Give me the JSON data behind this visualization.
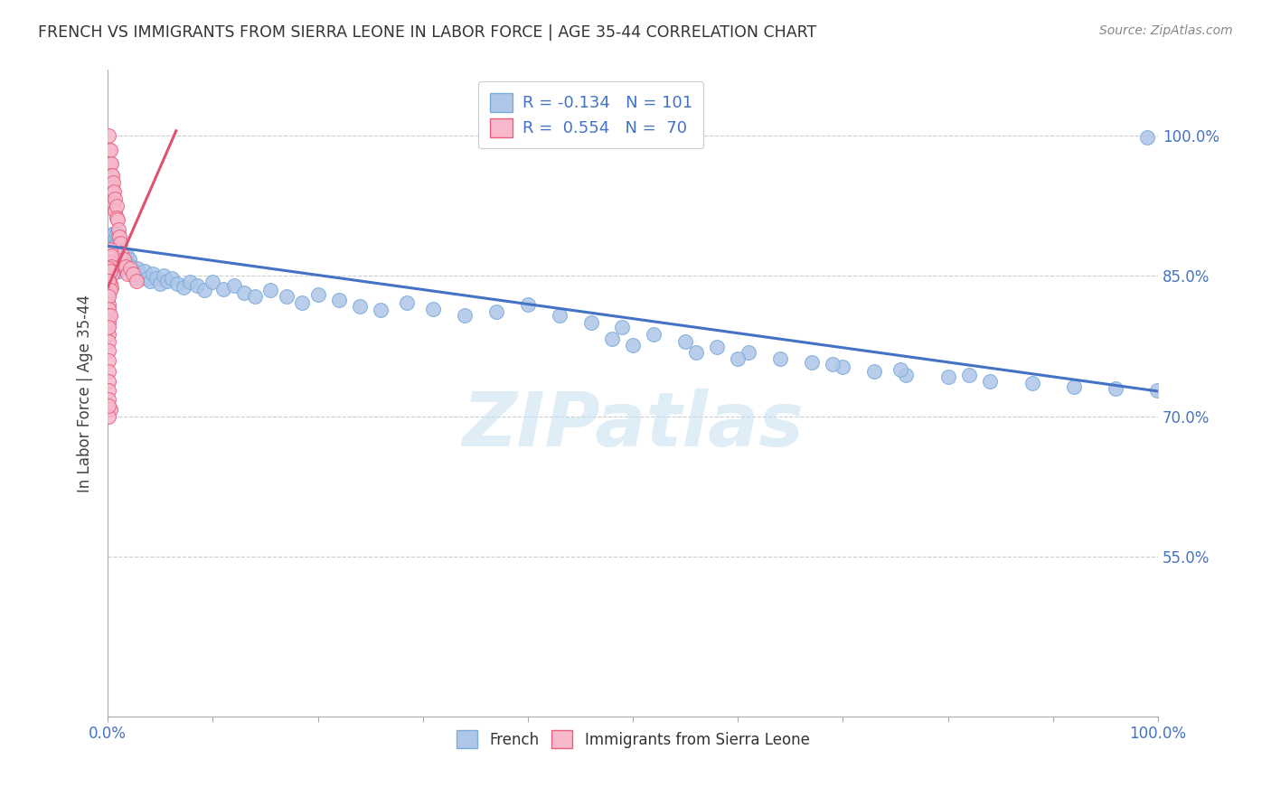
{
  "title": "FRENCH VS IMMIGRANTS FROM SIERRA LEONE IN LABOR FORCE | AGE 35-44 CORRELATION CHART",
  "source": "Source: ZipAtlas.com",
  "ylabel": "In Labor Force | Age 35-44",
  "watermark": "ZIPatlas",
  "xlim": [
    0.0,
    1.0
  ],
  "ylim": [
    0.38,
    1.07
  ],
  "ytick_positions": [
    0.55,
    0.7,
    0.85,
    1.0
  ],
  "ytick_labels": [
    "55.0%",
    "70.0%",
    "85.0%",
    "100.0%"
  ],
  "french_color": "#aec6e8",
  "french_edge": "#7aacdb",
  "sierra_leone_color": "#f7b8cb",
  "sierra_leone_edge": "#e8607e",
  "french_line_color": "#4472c4",
  "sierra_leone_line_color": "#e05070",
  "legend_french_label": "R = -0.134   N = 101",
  "legend_sierra_label": "R =  0.554   N =  70",
  "french_line_x0": 0.0,
  "french_line_y0": 0.882,
  "french_line_x1": 1.0,
  "french_line_y1": 0.727,
  "sierra_line_x0": 0.0,
  "sierra_line_y0": 0.838,
  "sierra_line_x1": 0.065,
  "sierra_line_y1": 1.005,
  "french_scatter_x": [
    0.002,
    0.003,
    0.003,
    0.004,
    0.004,
    0.005,
    0.005,
    0.005,
    0.006,
    0.006,
    0.006,
    0.007,
    0.007,
    0.007,
    0.008,
    0.008,
    0.008,
    0.008,
    0.009,
    0.009,
    0.009,
    0.01,
    0.01,
    0.01,
    0.01,
    0.011,
    0.011,
    0.012,
    0.012,
    0.013,
    0.014,
    0.015,
    0.016,
    0.017,
    0.018,
    0.019,
    0.02,
    0.022,
    0.023,
    0.025,
    0.027,
    0.028,
    0.03,
    0.032,
    0.035,
    0.038,
    0.04,
    0.043,
    0.046,
    0.05,
    0.053,
    0.057,
    0.061,
    0.066,
    0.072,
    0.078,
    0.085,
    0.092,
    0.1,
    0.11,
    0.12,
    0.13,
    0.14,
    0.155,
    0.17,
    0.185,
    0.2,
    0.22,
    0.24,
    0.26,
    0.285,
    0.31,
    0.34,
    0.37,
    0.4,
    0.43,
    0.46,
    0.49,
    0.52,
    0.55,
    0.58,
    0.61,
    0.64,
    0.67,
    0.7,
    0.73,
    0.76,
    0.8,
    0.84,
    0.88,
    0.92,
    0.96,
    0.99,
    0.755,
    0.69,
    0.82,
    0.6,
    0.56,
    0.5,
    0.48,
    0.999
  ],
  "french_scatter_y": [
    0.87,
    0.86,
    0.88,
    0.875,
    0.895,
    0.87,
    0.88,
    0.865,
    0.855,
    0.875,
    0.895,
    0.86,
    0.875,
    0.89,
    0.855,
    0.87,
    0.885,
    0.895,
    0.86,
    0.875,
    0.89,
    0.855,
    0.87,
    0.885,
    0.895,
    0.862,
    0.88,
    0.858,
    0.876,
    0.868,
    0.872,
    0.865,
    0.86,
    0.868,
    0.873,
    0.862,
    0.868,
    0.86,
    0.855,
    0.855,
    0.848,
    0.858,
    0.85,
    0.848,
    0.855,
    0.848,
    0.845,
    0.852,
    0.848,
    0.842,
    0.85,
    0.845,
    0.848,
    0.842,
    0.838,
    0.844,
    0.84,
    0.835,
    0.844,
    0.836,
    0.84,
    0.832,
    0.828,
    0.835,
    0.828,
    0.822,
    0.83,
    0.824,
    0.818,
    0.814,
    0.822,
    0.815,
    0.808,
    0.812,
    0.82,
    0.808,
    0.8,
    0.795,
    0.788,
    0.78,
    0.774,
    0.768,
    0.762,
    0.758,
    0.753,
    0.748,
    0.744,
    0.742,
    0.738,
    0.736,
    0.732,
    0.73,
    0.998,
    0.75,
    0.756,
    0.744,
    0.762,
    0.768,
    0.776,
    0.783,
    0.728
  ],
  "sierra_scatter_x": [
    0.001,
    0.001,
    0.001,
    0.001,
    0.002,
    0.002,
    0.002,
    0.002,
    0.002,
    0.003,
    0.003,
    0.003,
    0.003,
    0.004,
    0.004,
    0.004,
    0.005,
    0.005,
    0.005,
    0.006,
    0.006,
    0.007,
    0.007,
    0.008,
    0.008,
    0.009,
    0.01,
    0.011,
    0.012,
    0.013,
    0.015,
    0.017,
    0.019,
    0.021,
    0.024,
    0.027,
    0.001,
    0.001,
    0.002,
    0.002,
    0.003,
    0.003,
    0.004,
    0.001,
    0.001,
    0.001,
    0.002,
    0.002,
    0.003,
    0.001,
    0.001,
    0.001,
    0.002,
    0.001,
    0.001,
    0.001,
    0.001,
    0.001,
    0.002,
    0.001,
    0.001,
    0.001,
    0.001,
    0.001,
    0.001,
    0.001,
    0.001,
    0.002,
    0.001,
    0.001
  ],
  "sierra_scatter_y": [
    1.0,
    0.985,
    0.97,
    0.958,
    0.985,
    0.97,
    0.958,
    0.945,
    0.932,
    0.97,
    0.958,
    0.945,
    0.93,
    0.958,
    0.945,
    0.932,
    0.95,
    0.938,
    0.925,
    0.94,
    0.928,
    0.932,
    0.92,
    0.925,
    0.912,
    0.91,
    0.9,
    0.892,
    0.885,
    0.875,
    0.868,
    0.86,
    0.852,
    0.858,
    0.852,
    0.845,
    0.875,
    0.862,
    0.878,
    0.865,
    0.872,
    0.86,
    0.852,
    0.858,
    0.845,
    0.838,
    0.855,
    0.842,
    0.838,
    0.845,
    0.832,
    0.82,
    0.835,
    0.828,
    0.815,
    0.808,
    0.8,
    0.788,
    0.808,
    0.795,
    0.78,
    0.77,
    0.76,
    0.748,
    0.738,
    0.728,
    0.718,
    0.708,
    0.7,
    0.712
  ],
  "background_color": "#ffffff",
  "grid_color": "#cccccc",
  "title_color": "#333333"
}
